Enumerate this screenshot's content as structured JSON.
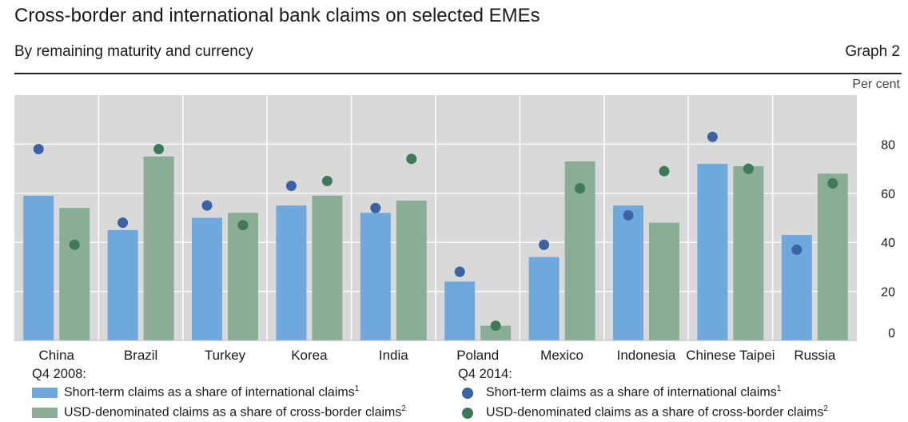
{
  "header": {
    "title": "Cross-border and international bank claims on selected EMEs",
    "subtitle": "By remaining maturity and currency",
    "graph_label": "Graph 2",
    "unit": "Per cent"
  },
  "colors": {
    "bar_short_term": "#6fa8dc",
    "bar_usd": "#8aad96",
    "dot_short_term": "#3a63a4",
    "dot_usd": "#3c7a5a",
    "plot_bg": "#d9d9d9"
  },
  "legend": {
    "left_head": "Q4 2008:",
    "right_head": "Q4 2014:",
    "short_term": "Short-term claims as a share of international claims",
    "short_term_note": "1",
    "usd": "USD-denominated claims as a share of cross-border claims",
    "usd_note": "2"
  },
  "chart_data": {
    "type": "bar",
    "categories": [
      "China",
      "Brazil",
      "Turkey",
      "Korea",
      "India",
      "Poland",
      "Mexico",
      "Indonesia",
      "Chinese Taipei",
      "Russia"
    ],
    "series": [
      {
        "name": "Q4 2008: Short-term claims as a share of international claims",
        "mark": "bar",
        "values": [
          59,
          45,
          50,
          55,
          52,
          24,
          34,
          55,
          72,
          43
        ]
      },
      {
        "name": "Q4 2008: USD-denominated claims as a share of cross-border claims",
        "mark": "bar",
        "values": [
          54,
          75,
          52,
          59,
          57,
          6,
          73,
          48,
          71,
          68
        ]
      },
      {
        "name": "Q4 2014: Short-term claims as a share of international claims",
        "mark": "dot",
        "values": [
          78,
          48,
          55,
          63,
          54,
          28,
          39,
          51,
          83,
          37
        ]
      },
      {
        "name": "Q4 2014: USD-denominated claims as a share of cross-border claims",
        "mark": "dot",
        "values": [
          39,
          78,
          47,
          65,
          74,
          6,
          62,
          69,
          70,
          64
        ]
      }
    ],
    "y_ticks": [
      0,
      20,
      40,
      60,
      80
    ],
    "ylim": [
      0,
      100
    ],
    "ylabel": "Per cent",
    "grid": true,
    "y_axis_side": "right"
  }
}
